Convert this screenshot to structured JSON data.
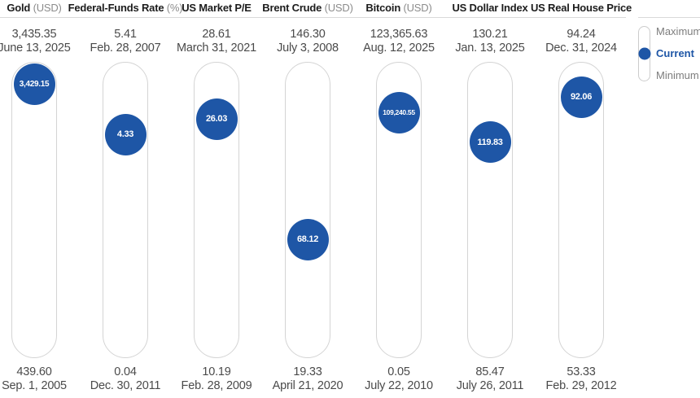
{
  "legend": {
    "maximum_label": "Maximum",
    "current_label": "Current",
    "minimum_label": "Minimum"
  },
  "colors": {
    "accent_blue": "#1e56a6",
    "track_border": "#d4d4d4",
    "divider_gray": "#d9d9d9",
    "muted_text": "#8c8c8c",
    "stat_text": "#4a4a4a",
    "header_text": "#1c1c1c"
  },
  "chart_data": {
    "type": "range-dot",
    "legend_position": "right",
    "legend_entries": [
      "Maximum",
      "Current",
      "Minimum"
    ],
    "series": [
      {
        "name": "Gold",
        "unit": "(USD)",
        "max_value": "3,435.35",
        "max_date": "June 13, 2025",
        "current_value": "3,429.15",
        "min_value": "439.60",
        "min_date": "Sep. 1, 2005",
        "max": 3435.35,
        "current": 3429.15,
        "min": 439.6
      },
      {
        "name": "Federal-Funds Rate",
        "unit": "(%)",
        "max_value": "5.41",
        "max_date": "Feb. 28, 2007",
        "current_value": "4.33",
        "min_value": "0.04",
        "min_date": "Dec. 30, 2011",
        "max": 5.41,
        "current": 4.33,
        "min": 0.04
      },
      {
        "name": "US Market P/E",
        "unit": "",
        "max_value": "28.61",
        "max_date": "March 31, 2021",
        "current_value": "26.03",
        "min_value": "10.19",
        "min_date": "Feb. 28, 2009",
        "max": 28.61,
        "current": 26.03,
        "min": 10.19
      },
      {
        "name": "Brent Crude",
        "unit": "(USD)",
        "max_value": "146.30",
        "max_date": "July 3, 2008",
        "current_value": "68.12",
        "min_value": "19.33",
        "min_date": "April 21, 2020",
        "max": 146.3,
        "current": 68.12,
        "min": 19.33
      },
      {
        "name": "Bitcoin",
        "unit": "(USD)",
        "max_value": "123,365.63",
        "max_date": "Aug. 12, 2025",
        "current_value": "109,240.55",
        "min_value": "0.05",
        "min_date": "July 22, 2010",
        "max": 123365.63,
        "current": 109240.55,
        "min": 0.05
      },
      {
        "name": "US Dollar Index",
        "unit": "",
        "max_value": "130.21",
        "max_date": "Jan. 13, 2025",
        "current_value": "119.83",
        "min_value": "85.47",
        "min_date": "July 26, 2011",
        "max": 130.21,
        "current": 119.83,
        "min": 85.47
      },
      {
        "name": "US Real House Price",
        "unit": "",
        "max_value": "94.24",
        "max_date": "Dec. 31, 2024",
        "current_value": "92.06",
        "min_value": "53.33",
        "min_date": "Feb. 29, 2012",
        "max": 94.24,
        "current": 92.06,
        "min": 53.33
      }
    ]
  }
}
